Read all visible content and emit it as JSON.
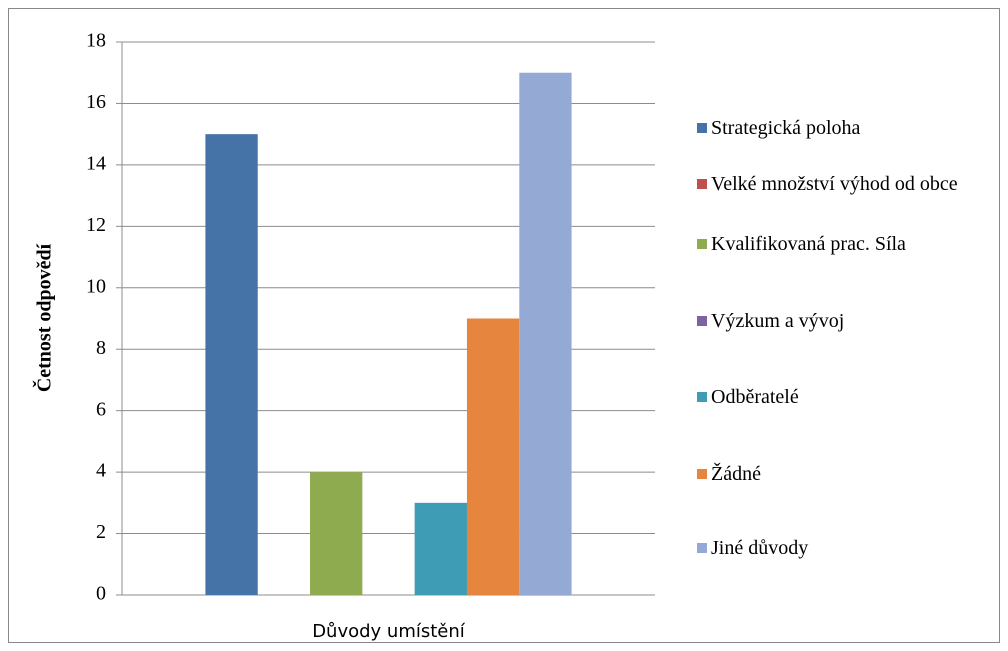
{
  "chart_data": {
    "type": "bar",
    "categories": [
      "Důvody umístění"
    ],
    "y_label": "Četnost odpovědí",
    "series": [
      {
        "name": "Strategická poloha",
        "color": "#4572a7",
        "values": [
          15
        ]
      },
      {
        "name": "Velké množství výhod od obce",
        "color": "#c0504d",
        "values": [
          0
        ]
      },
      {
        "name": "Kvalifikovaná prac. Síla",
        "color": "#8fab4f",
        "values": [
          4
        ]
      },
      {
        "name": "Výzkum a vývoj",
        "color": "#7e62a1",
        "values": [
          0
        ]
      },
      {
        "name": "Odběratelé",
        "color": "#3f9cb5",
        "values": [
          3
        ]
      },
      {
        "name": "Žádné",
        "color": "#e5853e",
        "values": [
          9
        ]
      },
      {
        "name": "Jiné důvody",
        "color": "#94aad4",
        "values": [
          17
        ]
      }
    ],
    "ylim": [
      0,
      18
    ],
    "yticks": [
      0,
      2,
      4,
      6,
      8,
      10,
      12,
      14,
      16,
      18
    ],
    "grid": true,
    "legend": "right"
  }
}
